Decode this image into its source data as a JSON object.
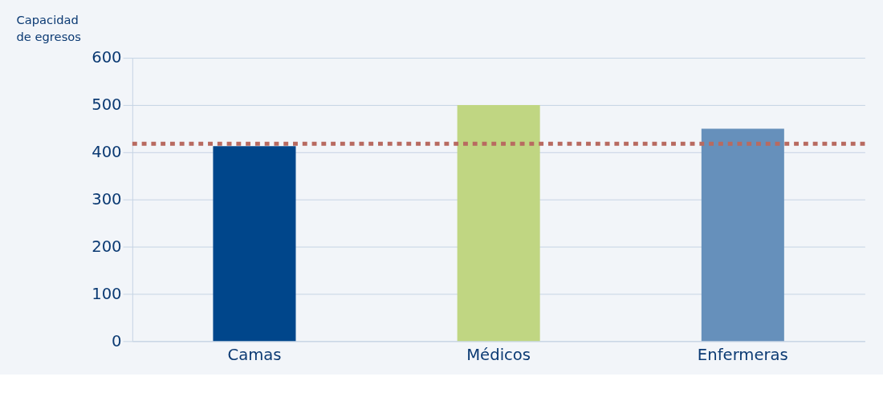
{
  "chart_data": {
    "type": "bar",
    "ylabel": "Capacidad de egresos",
    "categories": [
      "Camas",
      "Médicos",
      "Enfermeras"
    ],
    "values": [
      413,
      500,
      450
    ],
    "colors": [
      "#00468b",
      "#c0d682",
      "#6690bb"
    ],
    "ylim": [
      0,
      600
    ],
    "yticks": [
      0,
      100,
      200,
      300,
      400,
      500,
      600
    ],
    "grid": "y",
    "ref_lines": [
      {
        "axis": "y",
        "value": 418,
        "color": "#b86a60",
        "line_style": "dotted"
      }
    ]
  }
}
